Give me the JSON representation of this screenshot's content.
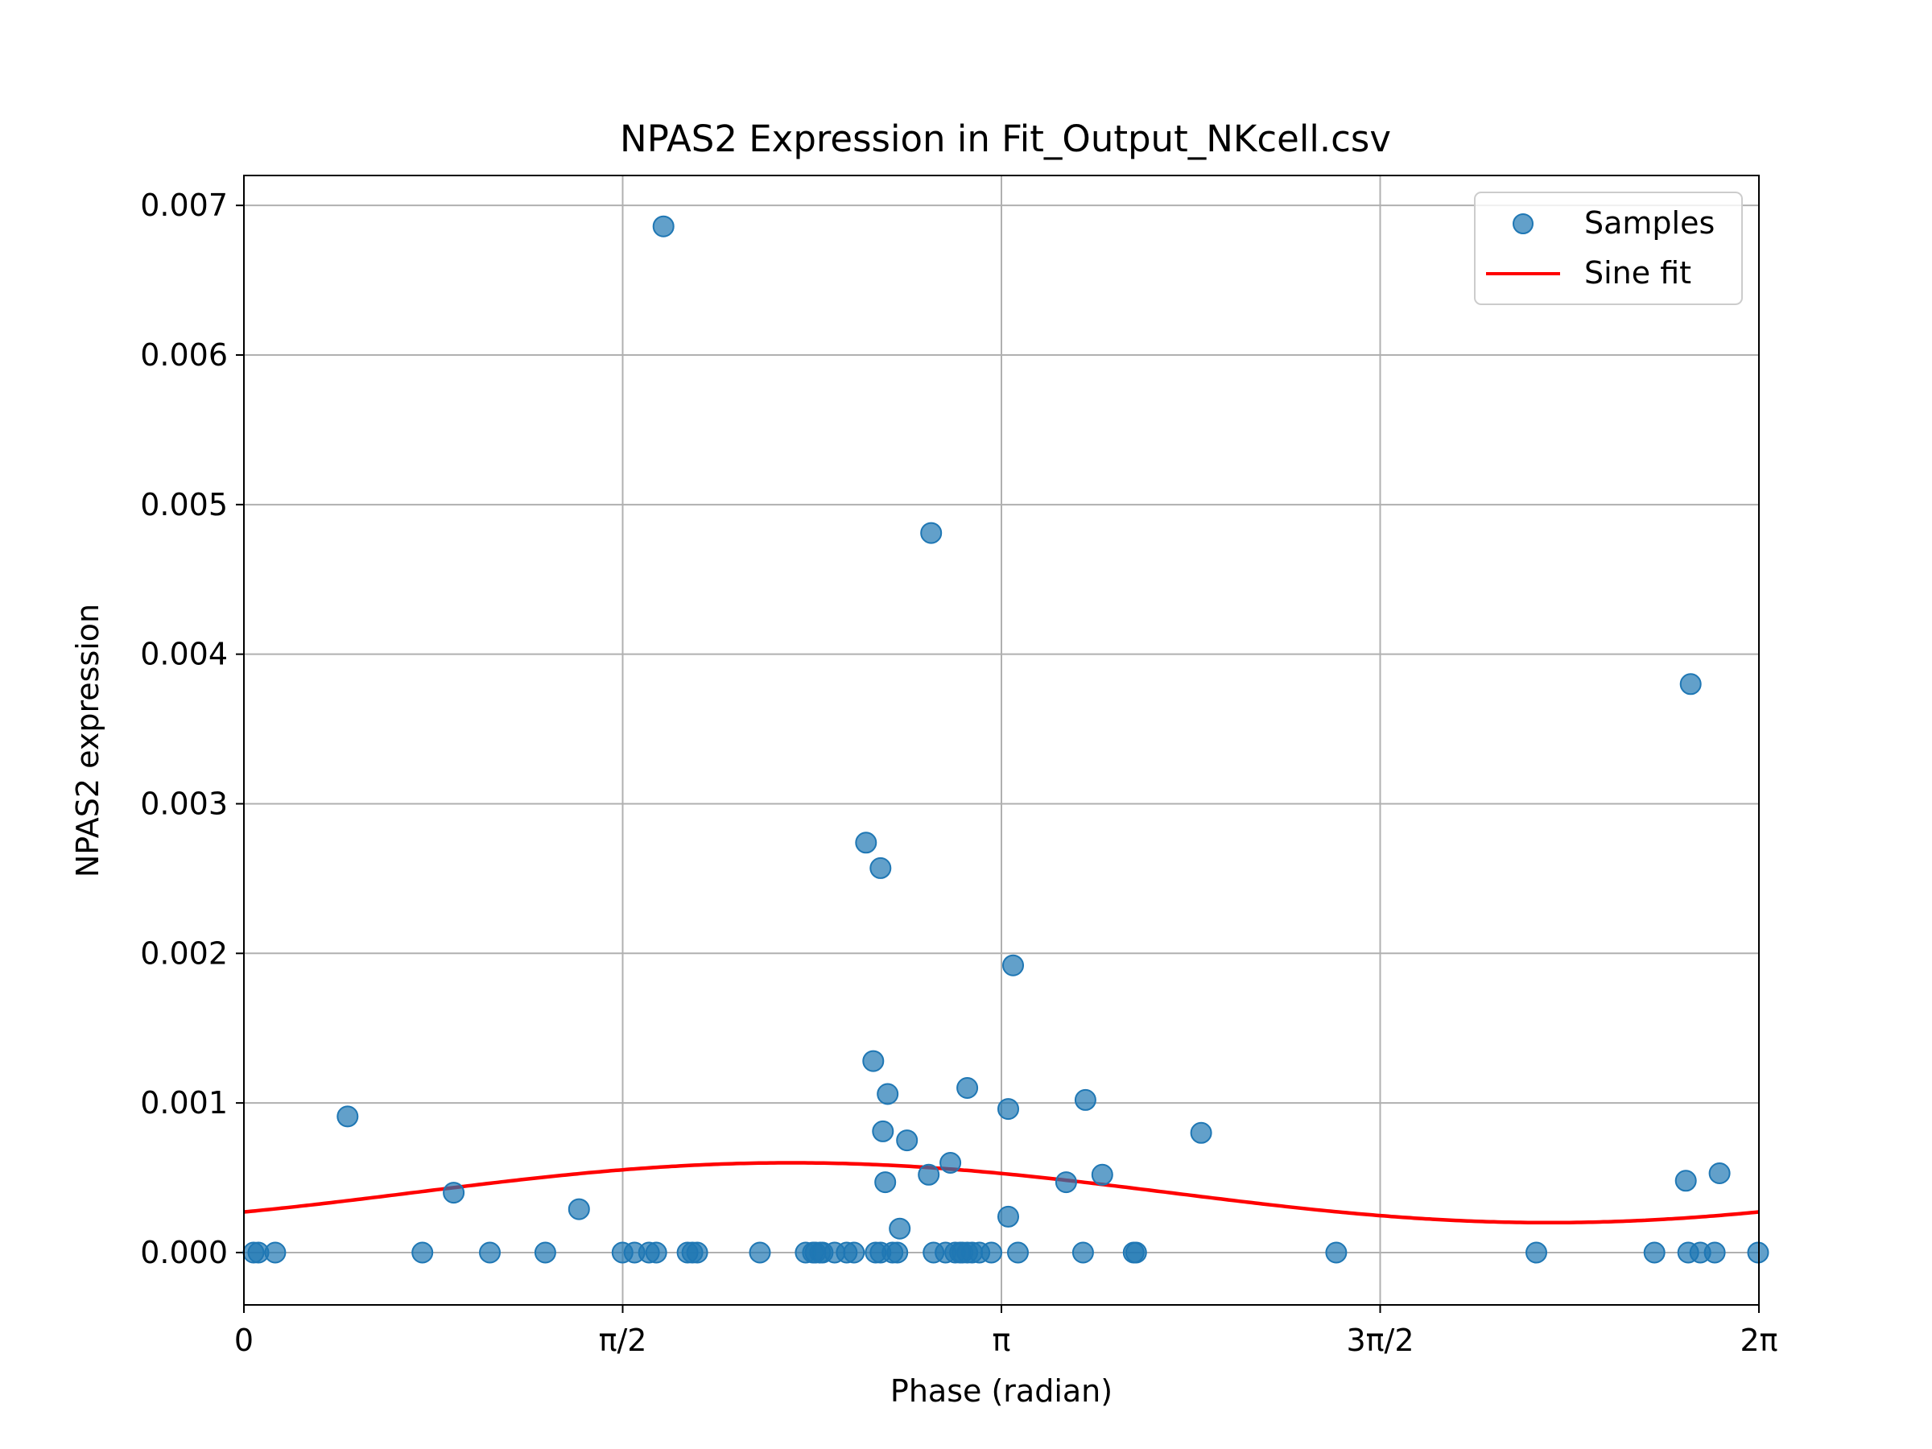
{
  "chart_data": {
    "type": "scatter",
    "title": "NPAS2 Expression in Fit_Output_NKcell.csv",
    "xlabel": "Phase (radian)",
    "ylabel": "NPAS2 expression",
    "xlim": [
      0,
      6.2832
    ],
    "ylim": [
      -0.00035,
      0.0072
    ],
    "grid": true,
    "legend_position": "top-right",
    "x_ticks": [
      {
        "value": 0,
        "label": "0"
      },
      {
        "value": 1.5708,
        "label": "π/2"
      },
      {
        "value": 3.1416,
        "label": "π"
      },
      {
        "value": 4.7124,
        "label": "3π/2"
      },
      {
        "value": 6.2832,
        "label": "2π"
      }
    ],
    "y_ticks": [
      {
        "value": 0,
        "label": "0.000"
      },
      {
        "value": 0.001,
        "label": "0.001"
      },
      {
        "value": 0.002,
        "label": "0.002"
      },
      {
        "value": 0.003,
        "label": "0.003"
      },
      {
        "value": 0.004,
        "label": "0.004"
      },
      {
        "value": 0.005,
        "label": "0.005"
      },
      {
        "value": 0.006,
        "label": "0.006"
      },
      {
        "value": 0.007,
        "label": "0.007"
      }
    ],
    "series": [
      {
        "name": "Samples",
        "kind": "scatter",
        "color": "#1f77b4",
        "points": [
          [
            0.04,
            0.0
          ],
          [
            0.06,
            0.0
          ],
          [
            0.13,
            0.0
          ],
          [
            0.43,
            0.00091
          ],
          [
            0.74,
            0.0
          ],
          [
            0.87,
            0.0004
          ],
          [
            1.02,
            0.0
          ],
          [
            1.25,
            0.0
          ],
          [
            1.39,
            0.00029
          ],
          [
            1.57,
            0.0
          ],
          [
            1.62,
            0.0
          ],
          [
            1.68,
            0.0
          ],
          [
            1.71,
            0.0
          ],
          [
            1.74,
            0.00686
          ],
          [
            1.84,
            0.0
          ],
          [
            1.86,
            0.0
          ],
          [
            1.88,
            0.0
          ],
          [
            2.14,
            0.0
          ],
          [
            2.33,
            0.0
          ],
          [
            2.36,
            0.0
          ],
          [
            2.37,
            0.0
          ],
          [
            2.39,
            0.0
          ],
          [
            2.4,
            0.0
          ],
          [
            2.45,
            0.0
          ],
          [
            2.5,
            0.0
          ],
          [
            2.53,
            0.0
          ],
          [
            2.58,
            0.00274
          ],
          [
            2.61,
            0.00128
          ],
          [
            2.62,
            0.0
          ],
          [
            2.64,
            0.0
          ],
          [
            2.64,
            0.00257
          ],
          [
            2.65,
            0.00081
          ],
          [
            2.66,
            0.00047
          ],
          [
            2.67,
            0.00106
          ],
          [
            2.69,
            0.0
          ],
          [
            2.71,
            0.0
          ],
          [
            2.72,
            0.00016
          ],
          [
            2.75,
            0.00075
          ],
          [
            2.84,
            0.00052
          ],
          [
            2.85,
            0.00481
          ],
          [
            2.86,
            0.0
          ],
          [
            2.91,
            0.0
          ],
          [
            2.93,
            0.0006
          ],
          [
            2.95,
            0.0
          ],
          [
            2.97,
            0.0
          ],
          [
            2.98,
            0.0
          ],
          [
            3.0,
            0.0011
          ],
          [
            3.0,
            0.0
          ],
          [
            3.02,
            0.0
          ],
          [
            3.05,
            0.0
          ],
          [
            3.1,
            0.0
          ],
          [
            3.17,
            0.00024
          ],
          [
            3.17,
            0.00096
          ],
          [
            3.19,
            0.00192
          ],
          [
            3.21,
            0.0
          ],
          [
            3.41,
            0.00047
          ],
          [
            3.48,
            0.0
          ],
          [
            3.49,
            0.00102
          ],
          [
            3.56,
            0.00052
          ],
          [
            3.69,
            0.0
          ],
          [
            3.7,
            0.0
          ],
          [
            3.97,
            0.0008
          ],
          [
            4.53,
            0.0
          ],
          [
            5.36,
            0.0
          ],
          [
            5.85,
            0.0
          ],
          [
            5.98,
            0.00048
          ],
          [
            5.99,
            0.0
          ],
          [
            6.0,
            0.0038
          ],
          [
            6.04,
            0.0
          ],
          [
            6.1,
            0.0
          ],
          [
            6.12,
            0.00053
          ],
          [
            6.28,
            0.0
          ]
        ]
      },
      {
        "name": "Sine fit",
        "kind": "line",
        "color": "#ff0000",
        "model": {
          "form": "offset + amplitude * cos(x - acrophase)",
          "offset": 0.0004,
          "amplitude": 0.0002,
          "acrophase": 2.27
        }
      }
    ]
  }
}
